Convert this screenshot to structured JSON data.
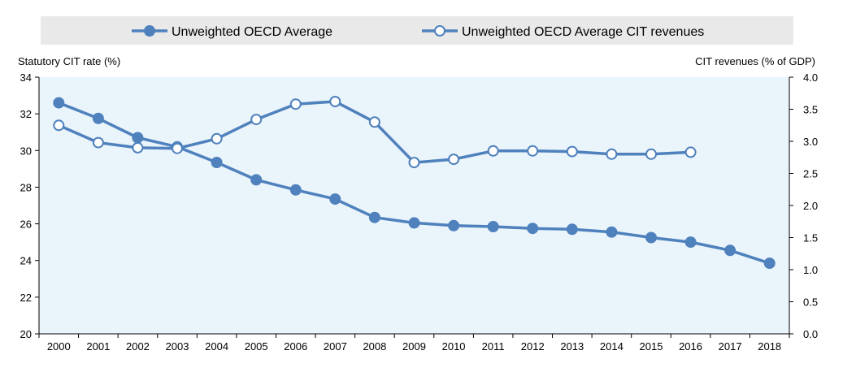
{
  "chart_data": {
    "type": "line",
    "title": "",
    "categories": [
      "2000",
      "2001",
      "2002",
      "2003",
      "2004",
      "2005",
      "2006",
      "2007",
      "2008",
      "2009",
      "2010",
      "2011",
      "2012",
      "2013",
      "2014",
      "2015",
      "2016",
      "2017",
      "2018"
    ],
    "left_axis": {
      "label": "Statutory CIT rate (%)",
      "range": [
        20,
        34
      ],
      "ticks": [
        20,
        22,
        24,
        26,
        28,
        30,
        32,
        34
      ],
      "tick_labels": [
        "20",
        "22",
        "24",
        "26",
        "28",
        "30",
        "32",
        "34"
      ]
    },
    "right_axis": {
      "label": "CIT revenues (% of GDP)",
      "range": [
        0,
        4
      ],
      "ticks": [
        0,
        0.5,
        1,
        1.5,
        2,
        2.5,
        3,
        3.5,
        4
      ],
      "tick_labels": [
        "0.0",
        "0.5",
        "1.0",
        "1.5",
        "2.0",
        "2.5",
        "3.0",
        "3.5",
        "4.0"
      ]
    },
    "series": [
      {
        "name": "Unweighted OECD Average",
        "axis": "left",
        "marker": "filled",
        "values": [
          32.6,
          31.75,
          30.7,
          30.2,
          29.35,
          28.4,
          27.85,
          27.35,
          26.35,
          26.05,
          25.9,
          25.85,
          25.75,
          25.7,
          25.55,
          25.25,
          25.0,
          24.55,
          23.85
        ]
      },
      {
        "name": "Unweighted OECD Average CIT revenues",
        "axis": "right",
        "marker": "hollow",
        "values": [
          3.25,
          2.98,
          2.9,
          2.89,
          3.04,
          3.34,
          3.58,
          3.62,
          3.3,
          2.67,
          2.72,
          2.85,
          2.85,
          2.84,
          2.8,
          2.8,
          2.83,
          null,
          null
        ]
      }
    ],
    "grid": false,
    "legend_position": "top"
  },
  "colors": {
    "series": "#4F81BD",
    "plot_bg": "#EAF4FB",
    "legend_bg": "#E9E9E9",
    "axis": "#000000"
  }
}
